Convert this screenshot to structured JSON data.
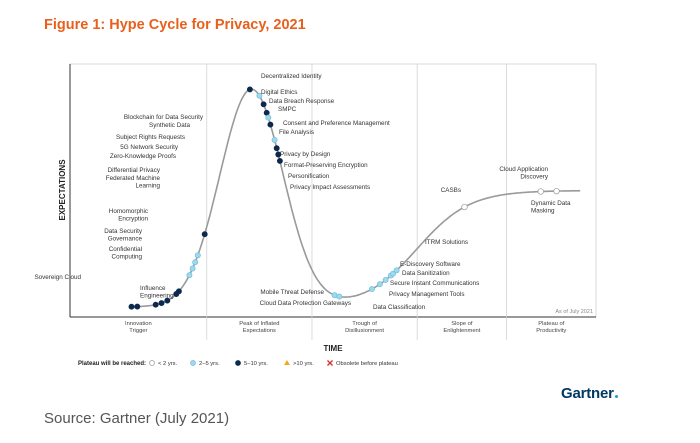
{
  "figure": {
    "title": "Figure 1: Hype Cycle for Privacy, 2021",
    "source": "Source: Gartner (July 2021)",
    "brand": "Gartner"
  },
  "chart_data": {
    "type": "hype-cycle",
    "ylabel": "EXPECTATIONS",
    "xlabel": "TIME",
    "as_of": "As of July 2021",
    "phases": [
      {
        "key": "trigger",
        "lines": [
          "Innovation",
          "Trigger"
        ]
      },
      {
        "key": "peak",
        "lines": [
          "Peak of Inflated",
          "Expectations"
        ]
      },
      {
        "key": "trough",
        "lines": [
          "Trough of",
          "Disillusionment"
        ]
      },
      {
        "key": "slope",
        "lines": [
          "Slope of",
          "Enlightenment"
        ]
      },
      {
        "key": "plateau",
        "lines": [
          "Plateau of",
          "Productivity"
        ]
      }
    ],
    "legend": {
      "title": "Plateau will be reached:",
      "items": [
        {
          "key": "lt2",
          "label": "< 2 yrs."
        },
        {
          "key": "2to5",
          "label": "2–5 yrs."
        },
        {
          "key": "5to10",
          "label": "5–10 yrs."
        },
        {
          "key": "gt10",
          "label": ">10 yrs."
        },
        {
          "key": "obsolete",
          "label": "Obsolete before plateau"
        }
      ]
    },
    "colors": {
      "lt2": "#ffffff",
      "2to5": "#9fd9ee",
      "5to10": "#0d2a4e",
      "gt10": "#f2a81d",
      "obsolete": "#d9312a",
      "curve": "#9a9a9a",
      "ink": "#333333"
    },
    "technologies": [
      {
        "name": "Sovereign Cloud",
        "lines": [
          "Sovereign Cloud"
        ],
        "t": 0.128,
        "status": "5to10",
        "label_side": "left"
      },
      {
        "name": "Influence Engineering",
        "lines": [
          "Influence",
          "Engineering"
        ],
        "t": 0.117,
        "status": "5to10",
        "label_side": "right"
      },
      {
        "name": "Confidential Computing",
        "lines": [
          "Confidential",
          "Computing"
        ],
        "t": 0.163,
        "status": "5to10",
        "label_side": "left"
      },
      {
        "name": "Data Security Governance",
        "lines": [
          "Data Security",
          "Governance"
        ],
        "t": 0.174,
        "status": "5to10",
        "label_side": "left"
      },
      {
        "name": "Homomorphic Encryption",
        "lines": [
          "Homomorphic",
          "Encryption"
        ],
        "t": 0.185,
        "status": "5to10",
        "label_side": "left"
      },
      {
        "name": "Differential Privacy",
        "lines": [
          "Differential Privacy"
        ],
        "t": 0.207,
        "status": "5to10",
        "label_side": "left"
      },
      {
        "name": "Federated Machine Learning",
        "lines": [
          "Federated Machine",
          "Learning"
        ],
        "t": 0.202,
        "status": "5to10",
        "label_side": "left"
      },
      {
        "name": "Zero-Knowledge Proofs",
        "lines": [
          "Zero-Knowledge Proofs"
        ],
        "t": 0.227,
        "status": "2to5",
        "label_side": "left"
      },
      {
        "name": "5G Network Security",
        "lines": [
          "5G Network Security"
        ],
        "t": 0.233,
        "status": "2to5",
        "label_side": "left"
      },
      {
        "name": "Subject Rights Requests",
        "lines": [
          "Subject Rights Requests"
        ],
        "t": 0.238,
        "status": "2to5",
        "label_side": "left"
      },
      {
        "name": "Synthetic Data",
        "lines": [
          "Synthetic Data"
        ],
        "t": 0.243,
        "status": "2to5",
        "label_side": "left"
      },
      {
        "name": "Blockchain for Data Security",
        "lines": [
          "Blockchain for Data Security"
        ],
        "t": 0.256,
        "status": "5to10",
        "label_side": "left"
      },
      {
        "name": "Decentralized Identity",
        "lines": [
          "Decentralized Identity"
        ],
        "t": 0.342,
        "status": "5to10",
        "label_side": "right"
      },
      {
        "name": "Digital Ethics",
        "lines": [
          "Digital Ethics"
        ],
        "t": 0.36,
        "status": "2to5",
        "label_side": "right"
      },
      {
        "name": "Data Breach Response",
        "lines": [
          "Data Breach Response"
        ],
        "t": 0.368,
        "status": "5to10",
        "label_side": "right"
      },
      {
        "name": "SMPC",
        "lines": [
          "SMPC"
        ],
        "t": 0.374,
        "status": "5to10",
        "label_side": "right"
      },
      {
        "name": "Consent and Preference Management",
        "lines": [
          "Consent and Preference Management"
        ],
        "t": 0.377,
        "status": "2to5",
        "label_side": "right"
      },
      {
        "name": "File Analysis",
        "lines": [
          "File Analysis"
        ],
        "t": 0.381,
        "status": "5to10",
        "label_side": "right"
      },
      {
        "name": "Privacy by Design",
        "lines": [
          "Privacy by Design"
        ],
        "t": 0.389,
        "status": "2to5",
        "label_side": "right"
      },
      {
        "name": "Format-Preserving Encryption",
        "lines": [
          "Format-Preserving Encryption"
        ],
        "t": 0.393,
        "status": "5to10",
        "label_side": "right"
      },
      {
        "name": "Personification",
        "lines": [
          "Personification"
        ],
        "t": 0.396,
        "status": "5to10",
        "label_side": "right"
      },
      {
        "name": "Privacy Impact Assessments",
        "lines": [
          "Privacy Impact Assessments"
        ],
        "t": 0.399,
        "status": "5to10",
        "label_side": "right"
      },
      {
        "name": "Mobile Threat Defense",
        "lines": [
          "Mobile Threat Defense"
        ],
        "t": 0.503,
        "status": "2to5",
        "label_side": "left"
      },
      {
        "name": "Cloud Data Protection Gateways",
        "lines": [
          "Cloud Data Protection Gateways"
        ],
        "t": 0.512,
        "status": "2to5",
        "label_side": "left"
      },
      {
        "name": "Data Classification",
        "lines": [
          "Data Classification"
        ],
        "t": 0.574,
        "status": "2to5",
        "label_side": "right"
      },
      {
        "name": "Privacy Management Tools",
        "lines": [
          "Privacy Management Tools"
        ],
        "t": 0.589,
        "status": "2to5",
        "label_side": "right"
      },
      {
        "name": "Secure Instant Communications",
        "lines": [
          "Secure Instant Communications"
        ],
        "t": 0.6,
        "status": "2to5",
        "label_side": "right"
      },
      {
        "name": "E-Discovery Software",
        "lines": [
          "E-Discovery Software"
        ],
        "t": 0.61,
        "status": "2to5",
        "label_side": "right"
      },
      {
        "name": "Data Sanitization",
        "lines": [
          "Data Sanitization"
        ],
        "t": 0.614,
        "status": "2to5",
        "label_side": "right"
      },
      {
        "name": "ITRM Solutions",
        "lines": [
          "ITRM Solutions"
        ],
        "t": 0.621,
        "status": "2to5",
        "label_side": "right"
      },
      {
        "name": "CASBs",
        "lines": [
          "CASBs"
        ],
        "t": 0.75,
        "status": "lt2",
        "label_side": "left"
      },
      {
        "name": "Cloud Application Discovery",
        "lines": [
          "Cloud Application",
          "Discovery"
        ],
        "t": 0.895,
        "status": "lt2",
        "label_side": "left"
      },
      {
        "name": "Dynamic Data Masking",
        "lines": [
          "Dynamic Data",
          "Masking"
        ],
        "t": 0.925,
        "status": "lt2",
        "label_side": "right"
      }
    ]
  }
}
